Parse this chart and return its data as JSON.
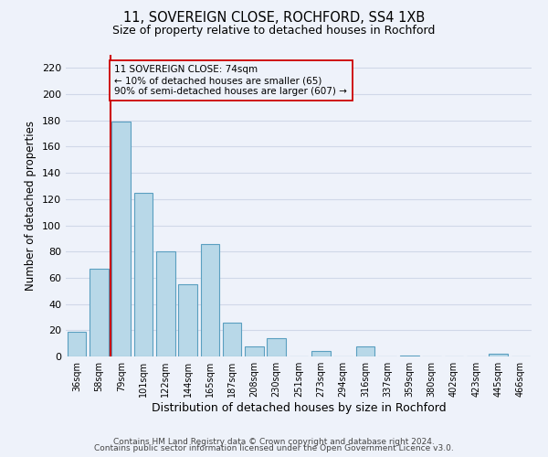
{
  "title": "11, SOVEREIGN CLOSE, ROCHFORD, SS4 1XB",
  "subtitle": "Size of property relative to detached houses in Rochford",
  "xlabel": "Distribution of detached houses by size in Rochford",
  "ylabel": "Number of detached properties",
  "bar_labels": [
    "36sqm",
    "58sqm",
    "79sqm",
    "101sqm",
    "122sqm",
    "144sqm",
    "165sqm",
    "187sqm",
    "208sqm",
    "230sqm",
    "251sqm",
    "273sqm",
    "294sqm",
    "316sqm",
    "337sqm",
    "359sqm",
    "380sqm",
    "402sqm",
    "423sqm",
    "445sqm",
    "466sqm"
  ],
  "bar_heights": [
    19,
    67,
    179,
    125,
    80,
    55,
    86,
    26,
    8,
    14,
    0,
    4,
    0,
    8,
    0,
    1,
    0,
    0,
    0,
    2,
    0
  ],
  "bar_color": "#b8d8e8",
  "bar_edge_color": "#5a9fc0",
  "marker_line_color": "#cc0000",
  "annotation_line1": "11 SOVEREIGN CLOSE: 74sqm",
  "annotation_line2": "← 10% of detached houses are smaller (65)",
  "annotation_line3": "90% of semi-detached houses are larger (607) →",
  "annotation_box_edge_color": "#cc0000",
  "ylim": [
    0,
    230
  ],
  "yticks": [
    0,
    20,
    40,
    60,
    80,
    100,
    120,
    140,
    160,
    180,
    200,
    220
  ],
  "footer_line1": "Contains HM Land Registry data © Crown copyright and database right 2024.",
  "footer_line2": "Contains public sector information licensed under the Open Government Licence v3.0.",
  "background_color": "#eef2fa",
  "grid_color": "#d0d8e8"
}
